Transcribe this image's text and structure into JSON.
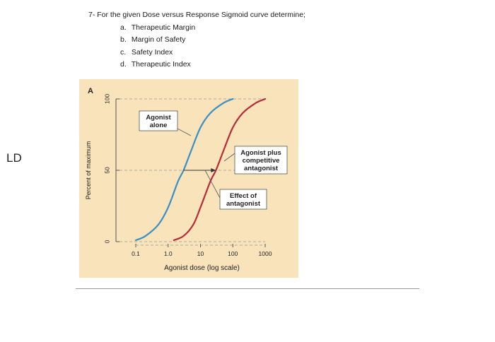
{
  "question": {
    "title": "7-  For the given Dose versus Response Sigmoid curve determine;",
    "items": [
      {
        "letter": "a.",
        "text": "Therapeutic Margin"
      },
      {
        "letter": "b.",
        "text": "Margin of Safety"
      },
      {
        "letter": "c.",
        "text": "Safety Index"
      },
      {
        "letter": "d.",
        "text": "Therapeutic Index"
      }
    ]
  },
  "side_label": "LD",
  "chart_data": {
    "type": "line",
    "panel_label": "A",
    "xlabel": "Agonist dose (log scale)",
    "ylabel": "Percent of maximum",
    "x_scale": "log",
    "xlim": [
      0.1,
      1000
    ],
    "ylim": [
      0,
      100
    ],
    "x_ticks": [
      "0.1",
      "1.0",
      "10",
      "100",
      "1000"
    ],
    "y_ticks": [
      "0",
      "50",
      "100"
    ],
    "series": [
      {
        "name": "Agonist alone",
        "color": "#3a8fc4",
        "x": [
          0.1,
          0.2,
          0.5,
          1,
          2,
          3,
          5,
          10,
          20,
          50,
          100
        ],
        "y": [
          1,
          4,
          12,
          24,
          42,
          50,
          63,
          80,
          90,
          97,
          100
        ]
      },
      {
        "name": "Agonist plus competitive antagonist",
        "color": "#b82a3a",
        "x": [
          1.5,
          3,
          6,
          10,
          20,
          30,
          50,
          100,
          200,
          500,
          1000
        ],
        "y": [
          1,
          4,
          12,
          24,
          42,
          50,
          63,
          80,
          90,
          97,
          100
        ]
      }
    ],
    "annotations": [
      {
        "text": "Agonist\nalone",
        "target": "Agonist alone"
      },
      {
        "text": "Agonist plus\ncompetitive\nantagonist",
        "target": "Agonist plus competitive antagonist"
      },
      {
        "text": "Effect of\nantagonist",
        "target": "shift at 50%"
      }
    ],
    "grid": "dashed at 50 and 100",
    "background": "#f8e3ba"
  }
}
